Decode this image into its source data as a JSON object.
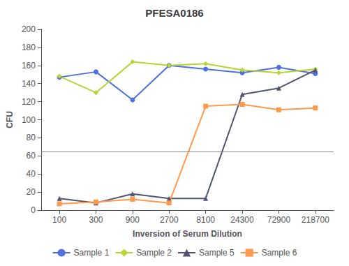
{
  "chart_data": {
    "type": "line",
    "title": "PFESA0186",
    "xlabel": "Inversion of Serum Dilution",
    "ylabel": "CFU",
    "categories": [
      "100",
      "300",
      "900",
      "2700",
      "8100",
      "24300",
      "72900",
      "218700"
    ],
    "series": [
      {
        "name": "Sample 1",
        "marker": "circle",
        "values": [
          147,
          153,
          122,
          160,
          156,
          152,
          158,
          151
        ]
      },
      {
        "name": "Sample 2",
        "marker": "diamond",
        "values": [
          148,
          130,
          164,
          160,
          162,
          155,
          152,
          156
        ]
      },
      {
        "name": "Sample 5",
        "marker": "triangle",
        "values": [
          13,
          8,
          18,
          13,
          13,
          128,
          135,
          155
        ]
      },
      {
        "name": "Sample 6",
        "marker": "square",
        "values": [
          7,
          9,
          12,
          8,
          115,
          117,
          111,
          113
        ]
      }
    ],
    "hline": 65,
    "ylim": [
      0,
      200
    ],
    "yticks": [
      0,
      20,
      40,
      60,
      80,
      100,
      120,
      140,
      160,
      180,
      200
    ],
    "grid": false,
    "legend": "bottom"
  }
}
